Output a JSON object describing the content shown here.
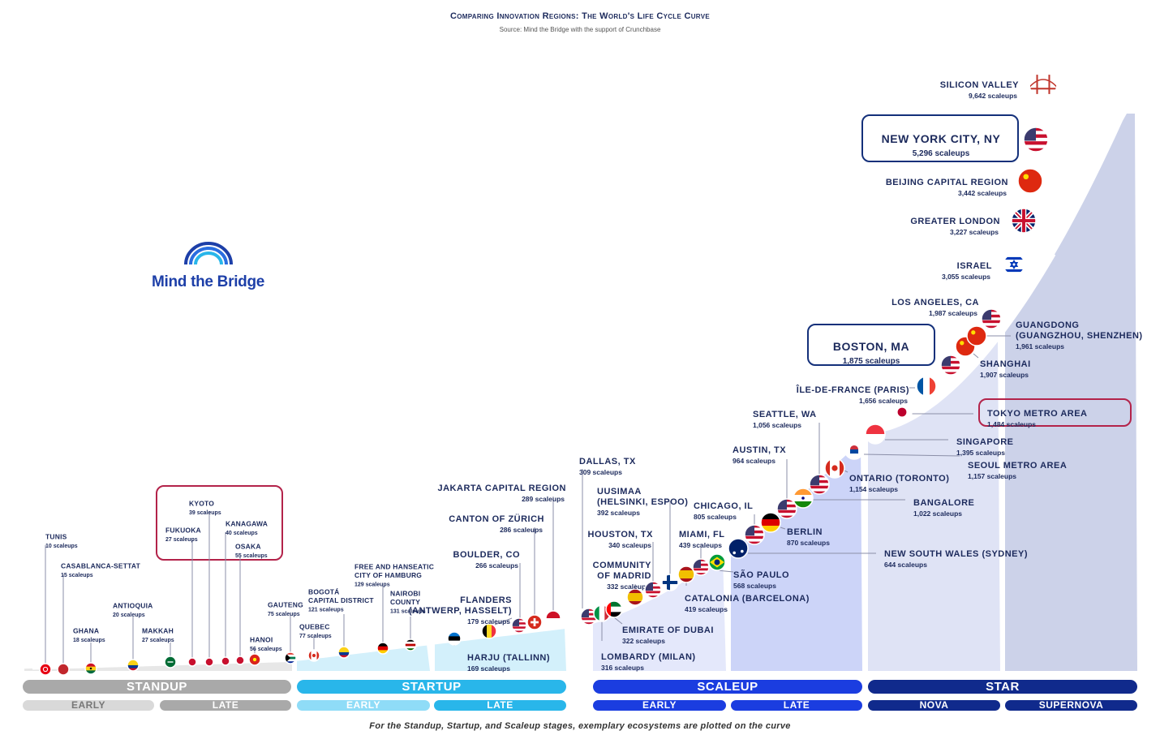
{
  "title": "Comparing Innovation Regions: The World's Life Cycle Curve",
  "subtitle": "Source: Mind the Bridge with the support of Crunchbase",
  "logo_text": "Mind the Bridge",
  "footnote": "For the Standup, Startup, and Scaleup stages, exemplary ecosystems are plotted on the curve",
  "stages": [
    {
      "label": "STANDUP",
      "color": "#a9a9a9",
      "subs": [
        {
          "label": "EARLY",
          "color": "#d9d9d9",
          "text": "#777777"
        },
        {
          "label": "LATE",
          "color": "#a9a9a9",
          "text": "#ffffff"
        }
      ]
    },
    {
      "label": "STARTUP",
      "color": "#29b6ea",
      "subs": [
        {
          "label": "EARLY",
          "color": "#8fdcf7",
          "text": "#ffffff"
        },
        {
          "label": "LATE",
          "color": "#29b6ea",
          "text": "#ffffff"
        }
      ]
    },
    {
      "label": "SCALEUP",
      "color": "#1b3de0",
      "subs": [
        {
          "label": "EARLY",
          "color": "#1b3de0",
          "text": "#ffffff"
        },
        {
          "label": "LATE",
          "color": "#1b3de0",
          "text": "#ffffff"
        }
      ]
    },
    {
      "label": "STAR",
      "color": "#102a8c",
      "subs": [
        {
          "label": "NOVA",
          "color": "#102a8c",
          "text": "#ffffff"
        },
        {
          "label": "SUPERNOVA",
          "color": "#102a8c",
          "text": "#ffffff"
        }
      ]
    }
  ],
  "colors": {
    "standup_fill": "#e7e7e7",
    "startup_fill": "#d3f0fb",
    "scaleup_early_fill": "#e4e8fb",
    "scaleup_late_fill": "#ccd4f8",
    "star_nova_fill": "#dfe3f5",
    "star_supernova_fill": "#ccd2e9",
    "text": "#1c2a5c",
    "highlight_navy": "#14307a",
    "highlight_red": "#b3234a",
    "curve": "#ffffff"
  },
  "chart_data": {
    "type": "scatter",
    "unit_label": "scaleups",
    "highlighted": [
      "KYOTO",
      "NEW YORK CITY, NY",
      "BOSTON, MA",
      "TOKYO METRO AREA"
    ],
    "points": [
      {
        "name": "TUNIS",
        "value": 10,
        "unit": "scaleups",
        "flag": "tunisia"
      },
      {
        "name": "CASABLANCA-SETTAT",
        "value": 15,
        "unit": "scaleups",
        "flag": "morocco"
      },
      {
        "name": "GHANA",
        "value": 18,
        "unit": "scaleups",
        "flag": "ghana"
      },
      {
        "name": "ANTIOQUIA",
        "value": 20,
        "unit": "scaleups",
        "flag": "colombia"
      },
      {
        "name": "MAKKAH",
        "value": 27,
        "unit": "scaleups",
        "flag": "saudi"
      },
      {
        "name": "FUKUOKA",
        "value": 27,
        "unit": "scaleups",
        "flag": "japan-dot"
      },
      {
        "name": "KYOTO",
        "value": 39,
        "unit": "scaleups",
        "flag": "japan-dot"
      },
      {
        "name": "KANAGAWA",
        "value": 40,
        "unit": "scaleups",
        "flag": "japan-dot"
      },
      {
        "name": "OSAKA",
        "value": 55,
        "unit": "scaleups",
        "flag": "japan-dot"
      },
      {
        "name": "HANOI",
        "value": 56,
        "unit": "scaleups",
        "flag": "vietnam"
      },
      {
        "name": "GAUTENG",
        "value": 75,
        "unit": "scaleups",
        "flag": "southafrica"
      },
      {
        "name": "QUEBEC",
        "value": 77,
        "unit": "scaleups",
        "flag": "canada"
      },
      {
        "name": "BOGOTÁ CAPITAL DISTRICT",
        "value": 121,
        "unit": "scaleups",
        "flag": "colombia"
      },
      {
        "name": "FREE AND HANSEATIC CITY OF HAMBURG",
        "value": 129,
        "unit": "scaleups",
        "flag": "germany"
      },
      {
        "name": "NAIROBI COUNTY",
        "value": 131,
        "unit": "scaleups",
        "flag": "kenya"
      },
      {
        "name": "HARJU (TALLINN)",
        "value": 169,
        "unit": "scaleups",
        "flag": "estonia"
      },
      {
        "name": "FLANDERS (ANTWERP, HASSELT)",
        "value": 179,
        "unit": "scaleups",
        "flag": "belgium"
      },
      {
        "name": "BOULDER, CO",
        "value": 266,
        "unit": "scaleups",
        "flag": "usa"
      },
      {
        "name": "CANTON OF ZÜRICH",
        "value": 286,
        "unit": "scaleups",
        "flag": "switzerland"
      },
      {
        "name": "JAKARTA CAPITAL REGION",
        "value": 289,
        "unit": "scaleups",
        "flag": "indonesia"
      },
      {
        "name": "DALLAS, TX",
        "value": 309,
        "unit": "scaleups",
        "flag": "usa"
      },
      {
        "name": "LOMBARDY (MILAN)",
        "value": 316,
        "unit": "scaleups",
        "flag": "italy"
      },
      {
        "name": "EMIRATE OF DUBAI",
        "value": 322,
        "unit": "scaleups",
        "flag": "uae"
      },
      {
        "name": "COMMUNITY OF MADRID",
        "value": 332,
        "unit": "scaleups",
        "flag": "spain"
      },
      {
        "name": "HOUSTON, TX",
        "value": 340,
        "unit": "scaleups",
        "flag": "usa"
      },
      {
        "name": "UUSIMAA (HELSINKI, ESPOO)",
        "value": 392,
        "unit": "scaleups",
        "flag": "finland"
      },
      {
        "name": "CATALONIA (BARCELONA)",
        "value": 419,
        "unit": "scaleups",
        "flag": "spain"
      },
      {
        "name": "MIAMI, FL",
        "value": 439,
        "unit": "scaleups",
        "flag": "usa"
      },
      {
        "name": "SÃO PAULO",
        "value": 568,
        "unit": "scaleups",
        "flag": "brazil"
      },
      {
        "name": "NEW SOUTH WALES (SYDNEY)",
        "value": 644,
        "unit": "scaleups",
        "flag": "australia"
      },
      {
        "name": "CHICAGO, IL",
        "value": 805,
        "unit": "scaleups",
        "flag": "usa"
      },
      {
        "name": "BERLIN",
        "value": 870,
        "unit": "scaleups",
        "flag": "germany"
      },
      {
        "name": "AUSTIN, TX",
        "value": 964,
        "unit": "scaleups",
        "flag": "usa"
      },
      {
        "name": "BANGALORE",
        "value": 1022,
        "unit": "scaleups",
        "flag": "india"
      },
      {
        "name": "SEATTLE, WA",
        "value": 1056,
        "unit": "scaleups",
        "flag": "usa"
      },
      {
        "name": "ONTARIO (TORONTO)",
        "value": 1154,
        "unit": "scaleups",
        "flag": "canada"
      },
      {
        "name": "SEOUL METRO AREA",
        "value": 1157,
        "unit": "scaleups",
        "flag": "korea"
      },
      {
        "name": "SINGAPORE",
        "value": 1395,
        "unit": "scaleups",
        "flag": "singapore"
      },
      {
        "name": "TOKYO METRO AREA",
        "value": 1484,
        "unit": "scaleups",
        "flag": "japan"
      },
      {
        "name": "ÎLE-DE-FRANCE (PARIS)",
        "value": 1656,
        "unit": "scaleups",
        "flag": "france"
      },
      {
        "name": "BOSTON, MA",
        "value": 1875,
        "unit": "scaleups",
        "flag": "usa"
      },
      {
        "name": "SHANGHAI",
        "value": 1907,
        "unit": "scaleups",
        "flag": "china"
      },
      {
        "name": "GUANGDONG (GUANGZHOU, SHENZHEN)",
        "value": 1961,
        "unit": "scaleups",
        "flag": "china"
      },
      {
        "name": "LOS ANGELES, CA",
        "value": 1987,
        "unit": "scaleups",
        "flag": "usa"
      },
      {
        "name": "ISRAEL",
        "value": 3055,
        "unit": "scaleups",
        "flag": "israel"
      },
      {
        "name": "GREATER LONDON",
        "value": 3227,
        "unit": "scaleups",
        "flag": "uk"
      },
      {
        "name": "BEIJING CAPITAL REGION",
        "value": 3442,
        "unit": "scaleups",
        "flag": "china"
      },
      {
        "name": "NEW YORK CITY, NY",
        "value": 5296,
        "unit": "scaleups",
        "flag": "usa"
      },
      {
        "name": "SILICON VALLEY",
        "value": 9642,
        "unit": "scaleups",
        "flag": "goldengate"
      }
    ]
  }
}
